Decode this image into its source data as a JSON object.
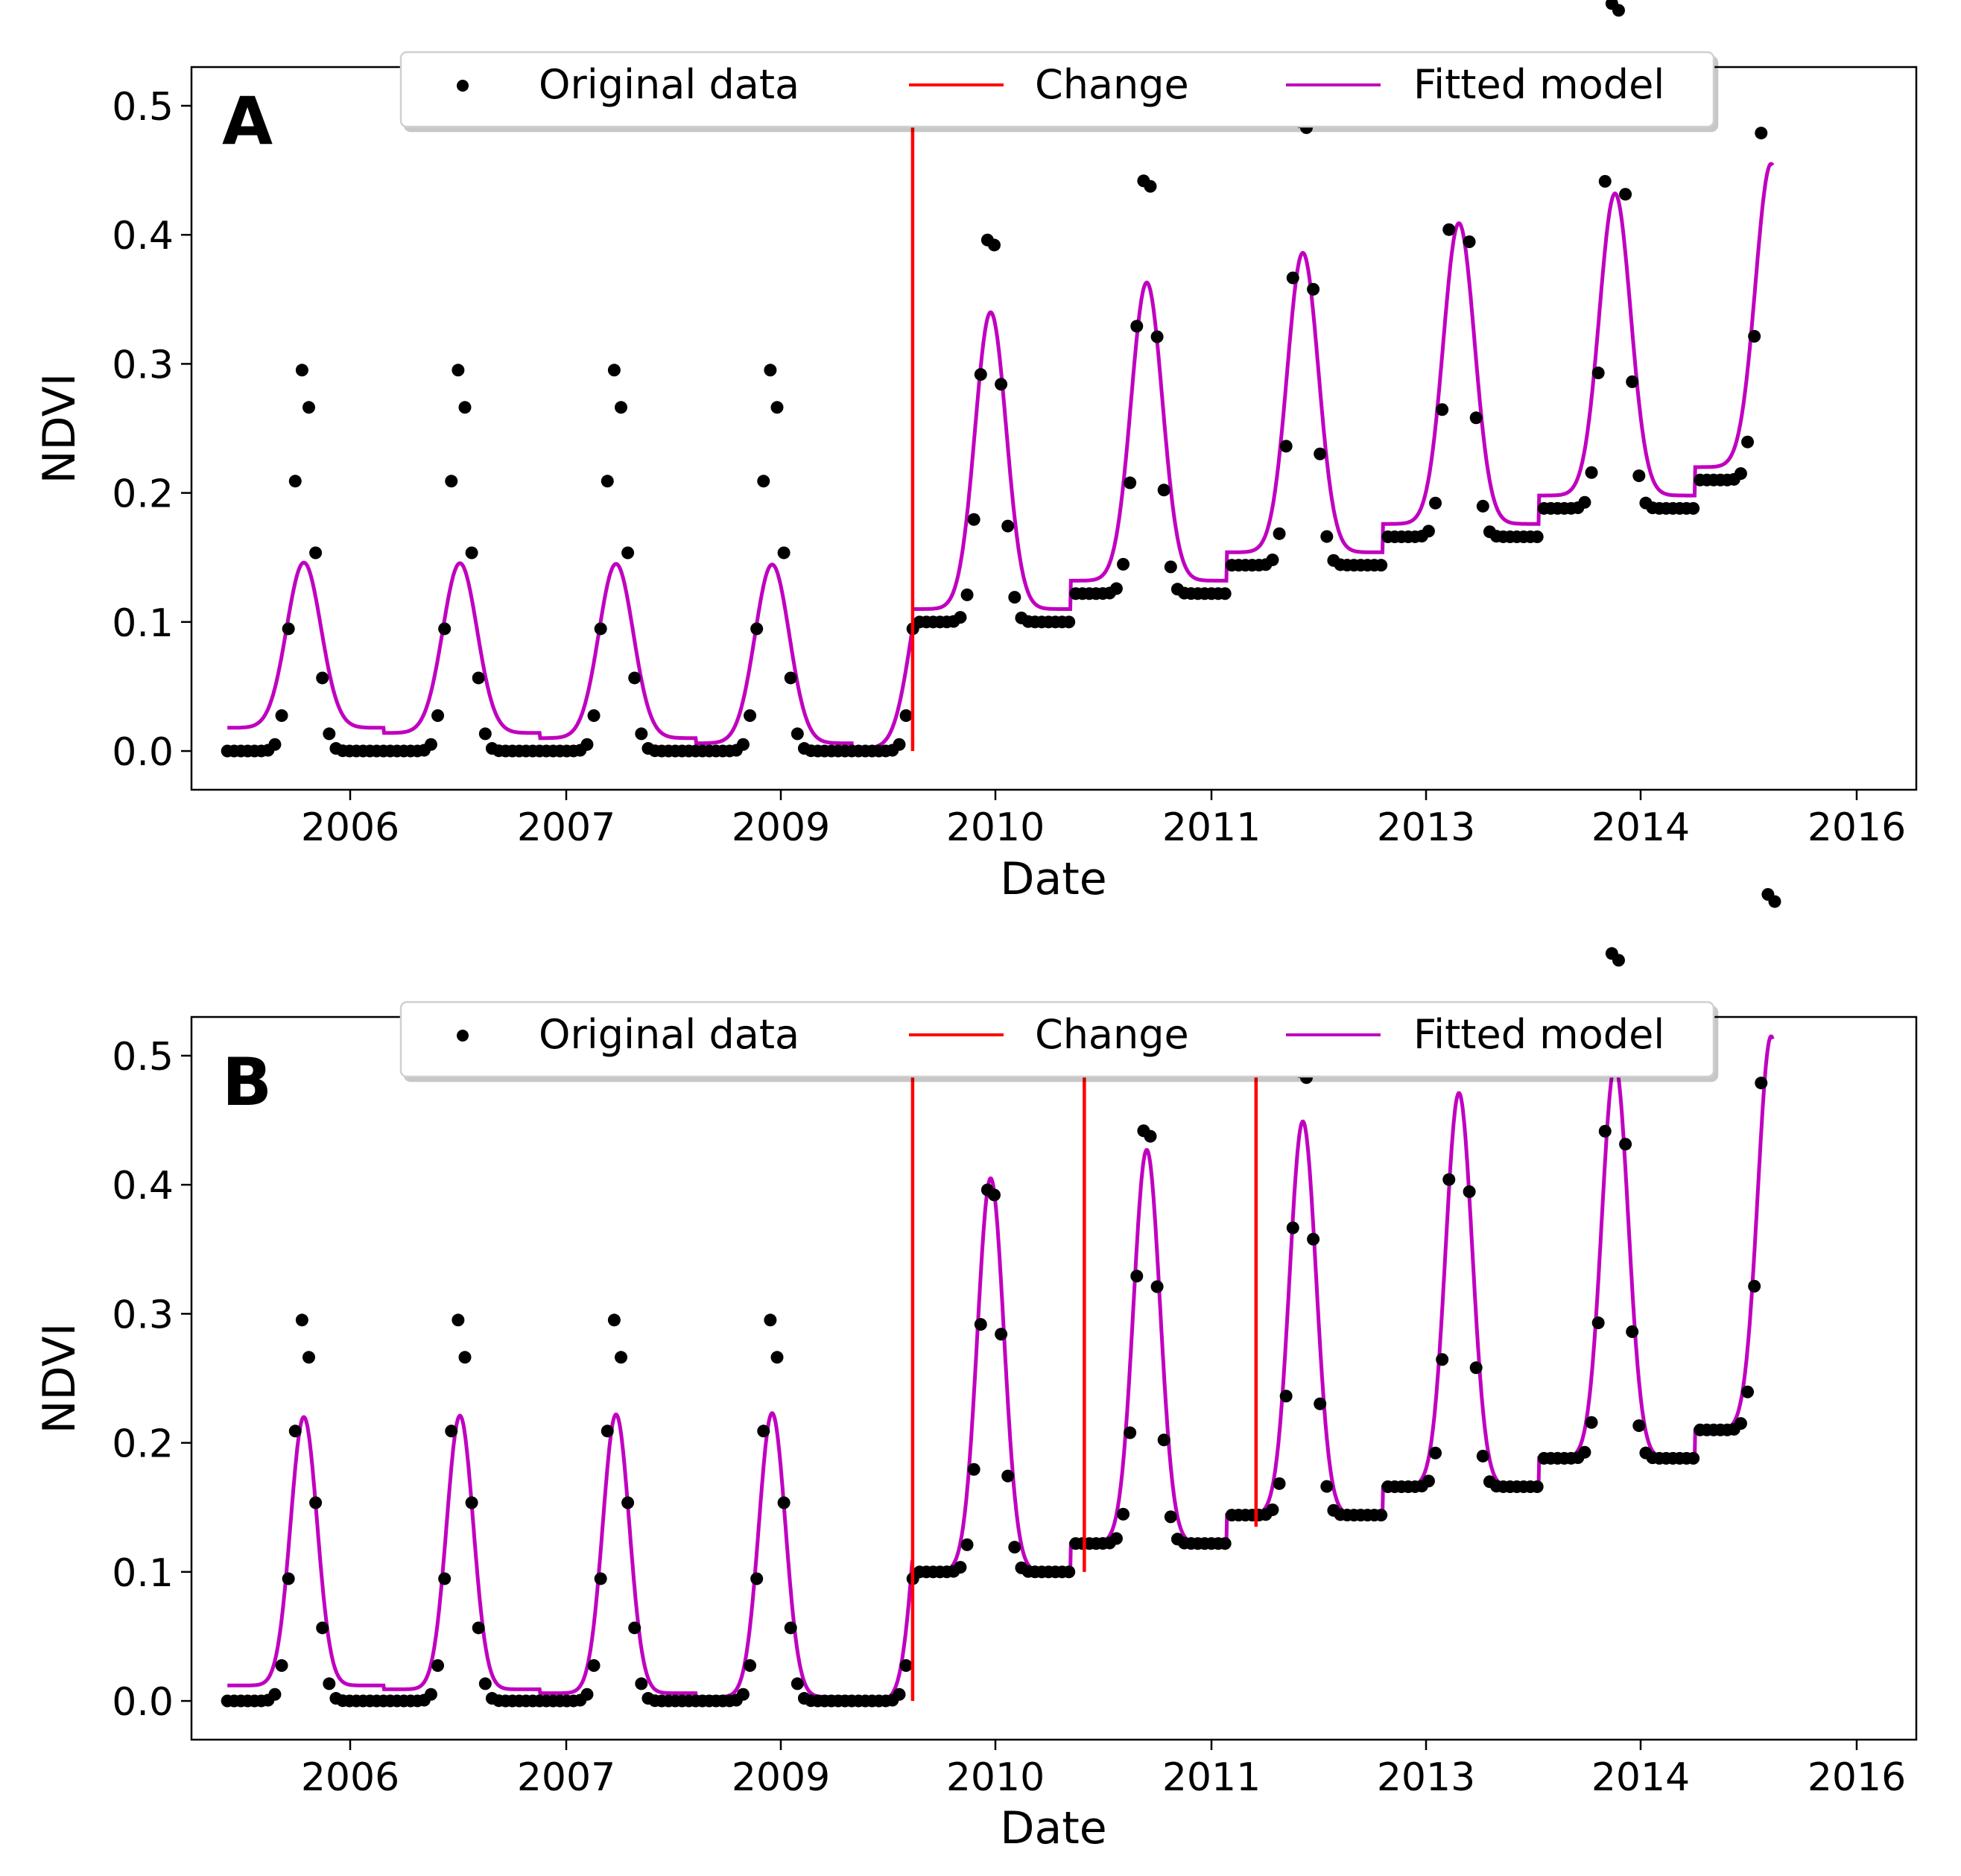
{
  "colors": {
    "observed": "#000000",
    "change": "#ff0000",
    "fit": "#c000c0",
    "axes": "#000000",
    "legend_border": "#cccccc"
  },
  "legend": {
    "observed_label": "Original data",
    "change_label": "Change",
    "fit_label": "Fitted model"
  },
  "chart_data": [
    {
      "type": "scatter",
      "panel_label": "A",
      "xlabel": "Date",
      "ylabel": "NDVI",
      "xlim": [
        2005.27,
        2016.32
      ],
      "ylim": [
        -0.03,
        0.53
      ],
      "x_ticks": [
        2006.0,
        2007.01,
        2008.37,
        2009.38,
        2010.74,
        2012.1,
        2013.11,
        2014.47,
        2015.48
      ],
      "x_tick_labels": [
        "2006",
        "2007",
        "2009",
        "2010",
        "2011",
        "2013",
        "2014",
        "2016"
      ],
      "x_tick_positions": [
        2006.0,
        2007.01,
        2008.37,
        2009.38,
        2010.74,
        2012.1,
        2013.11,
        2015.48
      ],
      "y_ticks": [
        0.0,
        0.1,
        0.2,
        0.3,
        0.4,
        0.5
      ],
      "y_tick_labels": [
        "0.0",
        "0.1",
        "0.2",
        "0.3",
        "0.4",
        "0.5"
      ],
      "legend_position": "upper-center",
      "series": [
        {
          "name": "Original data",
          "kind": "points",
          "segments": [
            {
              "start": 2005.5,
              "end": 2009.89,
              "base": 0.0,
              "amplitude": 0.3,
              "peak_offset": 0.49,
              "period": 1.0
            },
            {
              "start": 2009.9,
              "end": 2015.4,
              "base_start": 0.1,
              "base_step": 0.022,
              "amplitude_start": 0.311,
              "amplitude_step": 0.025,
              "peak_offset": 0.49,
              "period": 1.0
            }
          ]
        },
        {
          "name": "Fitted model",
          "kind": "line",
          "segments": [
            {
              "start": 2005.5,
              "end": 2009.89,
              "base_start": 0.018,
              "base_step": -0.004,
              "amplitude_start": 0.128,
              "amplitude_step": 0.0035,
              "peak_offset": 0.49,
              "width": 0.11
            },
            {
              "start": 2009.9,
              "end": 2015.4,
              "base_start": 0.11,
              "base_step": 0.022,
              "amplitude_start": 0.23,
              "amplitude_step": 0.001,
              "peak_offset": 0.49,
              "width": 0.1
            }
          ]
        }
      ],
      "change_points": [
        2009.89
      ]
    },
    {
      "type": "scatter",
      "panel_label": "B",
      "xlabel": "Date",
      "ylabel": "NDVI",
      "xlim": [
        2005.27,
        2016.32
      ],
      "ylim": [
        -0.03,
        0.53
      ],
      "y_ticks": [
        0.0,
        0.1,
        0.2,
        0.3,
        0.4,
        0.5
      ],
      "y_tick_labels": [
        "0.0",
        "0.1",
        "0.2",
        "0.3",
        "0.4",
        "0.5"
      ],
      "legend_position": "upper-center",
      "series": [
        {
          "name": "Original data",
          "kind": "points"
        },
        {
          "name": "Fitted model",
          "kind": "line",
          "segments": [
            {
              "start": 2005.5,
              "end": 2009.89,
              "base_start": 0.012,
              "base_step": -0.003,
              "amplitude_start": 0.208,
              "amplitude_step": 0.004,
              "peak_offset": 0.49,
              "width": 0.085
            },
            {
              "start": 2009.9,
              "end": 2015.4,
              "base_start": 0.1,
              "base_step": 0.022,
              "amplitude_start": 0.305,
              "amplitude_step": 0.0,
              "peak_offset": 0.49,
              "width": 0.085
            }
          ]
        }
      ],
      "change_points": [
        2009.89,
        2010.99,
        2012.09
      ]
    }
  ]
}
